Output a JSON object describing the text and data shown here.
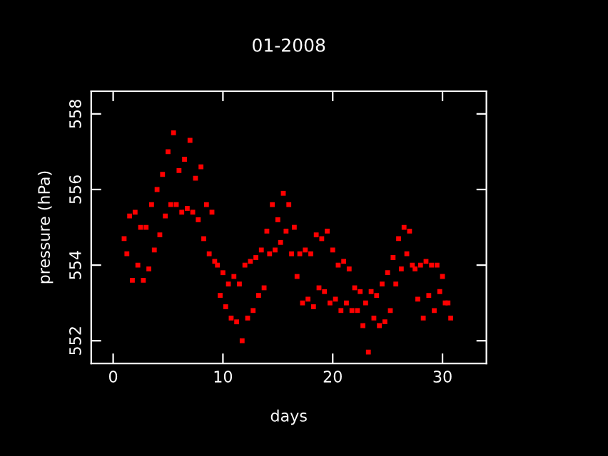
{
  "chart_data": {
    "type": "scatter",
    "title": "01-2008",
    "xlabel": "days",
    "ylabel": "pressure (hPa)",
    "xlim": [
      -2,
      34
    ],
    "xticks": [
      0,
      10,
      20,
      30
    ],
    "ylim": [
      551.4,
      558.6
    ],
    "yticks": [
      552,
      554,
      556,
      558
    ],
    "grid": false,
    "legend": false,
    "marker": "square",
    "series": [
      {
        "color": "#ff0000",
        "x": [
          1.0,
          1.25,
          1.5,
          1.75,
          2.0,
          2.25,
          2.5,
          2.75,
          3.0,
          3.25,
          3.5,
          3.75,
          4.0,
          4.25,
          4.5,
          4.75,
          5.0,
          5.25,
          5.5,
          5.75,
          6.0,
          6.25,
          6.5,
          6.75,
          7.0,
          7.25,
          7.5,
          7.75,
          8.0,
          8.25,
          8.5,
          8.75,
          9.0,
          9.25,
          9.5,
          9.75,
          10.0,
          10.25,
          10.5,
          10.75,
          11.0,
          11.25,
          11.5,
          11.75,
          12.0,
          12.25,
          12.5,
          12.75,
          13.0,
          13.25,
          13.5,
          13.75,
          14.0,
          14.25,
          14.5,
          14.75,
          15.0,
          15.25,
          15.5,
          15.75,
          16.0,
          16.25,
          16.5,
          16.75,
          17.0,
          17.25,
          17.5,
          17.75,
          18.0,
          18.25,
          18.5,
          18.75,
          19.0,
          19.25,
          19.5,
          19.75,
          20.0,
          20.25,
          20.5,
          20.75,
          21.0,
          21.25,
          21.5,
          21.75,
          22.0,
          22.25,
          22.5,
          22.75,
          23.0,
          23.25,
          23.5,
          23.75,
          24.0,
          24.25,
          24.5,
          24.75,
          25.0,
          25.25,
          25.5,
          25.75,
          26.0,
          26.25,
          26.5,
          26.75,
          27.0,
          27.25,
          27.5,
          27.75,
          28.0,
          28.25,
          28.5,
          28.75,
          29.0,
          29.25,
          29.5,
          29.75,
          30.0,
          30.25,
          30.5,
          30.75
        ],
        "values": [
          554.7,
          554.3,
          555.3,
          553.6,
          555.4,
          554.0,
          555.0,
          553.6,
          555.0,
          553.9,
          555.6,
          554.4,
          556.0,
          554.8,
          556.4,
          555.3,
          557.0,
          555.6,
          557.5,
          555.6,
          556.5,
          555.4,
          556.8,
          555.5,
          557.3,
          555.4,
          556.3,
          555.2,
          556.6,
          554.7,
          555.6,
          554.3,
          555.4,
          554.1,
          554.0,
          553.2,
          553.8,
          552.9,
          553.5,
          552.6,
          553.7,
          552.5,
          553.5,
          552.0,
          554.0,
          552.6,
          554.1,
          552.8,
          554.2,
          553.2,
          554.4,
          553.4,
          554.9,
          554.3,
          555.6,
          554.4,
          555.2,
          554.6,
          555.9,
          554.9,
          555.6,
          554.3,
          555.0,
          553.7,
          554.3,
          553.0,
          554.4,
          553.1,
          554.3,
          552.9,
          554.8,
          553.4,
          554.7,
          553.3,
          554.9,
          553.0,
          554.4,
          553.1,
          554.0,
          552.8,
          554.1,
          553.0,
          553.9,
          552.8,
          553.4,
          552.8,
          553.3,
          552.4,
          553.0,
          551.7,
          553.3,
          552.6,
          553.2,
          552.4,
          553.5,
          552.5,
          553.8,
          552.8,
          554.2,
          553.5,
          554.7,
          553.9,
          555.0,
          554.3,
          554.9,
          554.0,
          553.9,
          553.1,
          554.0,
          552.6,
          554.1,
          553.2,
          554.0,
          552.8,
          554.0,
          553.3,
          553.7,
          553.0,
          553.0,
          552.6
        ]
      }
    ]
  }
}
